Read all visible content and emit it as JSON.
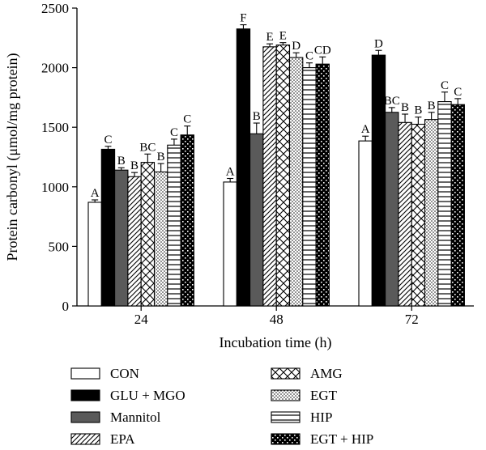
{
  "chart_data": {
    "type": "bar",
    "xlabel": "Incubation time (h)",
    "ylabel": "Protein carbonyl (μmol/mg protein)",
    "ylim": [
      0,
      2500
    ],
    "yticks": [
      "0",
      "500",
      "1000",
      "1500",
      "2000",
      "2500"
    ],
    "categories": [
      "24",
      "48",
      "72"
    ],
    "series": [
      {
        "name": "CON",
        "pattern": "white",
        "values": [
          870,
          1040,
          1385
        ],
        "errors": [
          20,
          30,
          40
        ],
        "labels": [
          "A",
          "A",
          "A"
        ]
      },
      {
        "name": "GLU + MGO",
        "pattern": "black",
        "values": [
          1315,
          2325,
          2105
        ],
        "errors": [
          25,
          35,
          40
        ],
        "labels": [
          "C",
          "F",
          "D"
        ]
      },
      {
        "name": "Mannitol",
        "pattern": "gray",
        "values": [
          1140,
          1445,
          1625
        ],
        "errors": [
          20,
          90,
          40
        ],
        "labels": [
          "B",
          "B",
          "BC"
        ]
      },
      {
        "name": "EPA",
        "pattern": "diagonal",
        "values": [
          1085,
          2175,
          1540
        ],
        "errors": [
          35,
          25,
          70
        ],
        "labels": [
          "B",
          "E",
          "B"
        ]
      },
      {
        "name": "AMG",
        "pattern": "crosshatch",
        "values": [
          1205,
          2190,
          1525
        ],
        "errors": [
          70,
          20,
          60
        ],
        "labels": [
          "BC",
          "E",
          "B"
        ]
      },
      {
        "name": "EGT",
        "pattern": "dots",
        "values": [
          1125,
          2085,
          1565
        ],
        "errors": [
          70,
          40,
          60
        ],
        "labels": [
          "B",
          "D",
          "B"
        ]
      },
      {
        "name": "HIP",
        "pattern": "hlines",
        "values": [
          1350,
          2000,
          1715
        ],
        "errors": [
          50,
          40,
          80
        ],
        "labels": [
          "C",
          "C",
          "C"
        ]
      },
      {
        "name": "EGT + HIP",
        "pattern": "checker",
        "values": [
          1435,
          2030,
          1690
        ],
        "errors": [
          75,
          60,
          50
        ],
        "labels": [
          "C",
          "CD",
          "C"
        ]
      }
    ],
    "legend_position": "bottom",
    "grid": false,
    "error_bars": "upper cap only"
  }
}
